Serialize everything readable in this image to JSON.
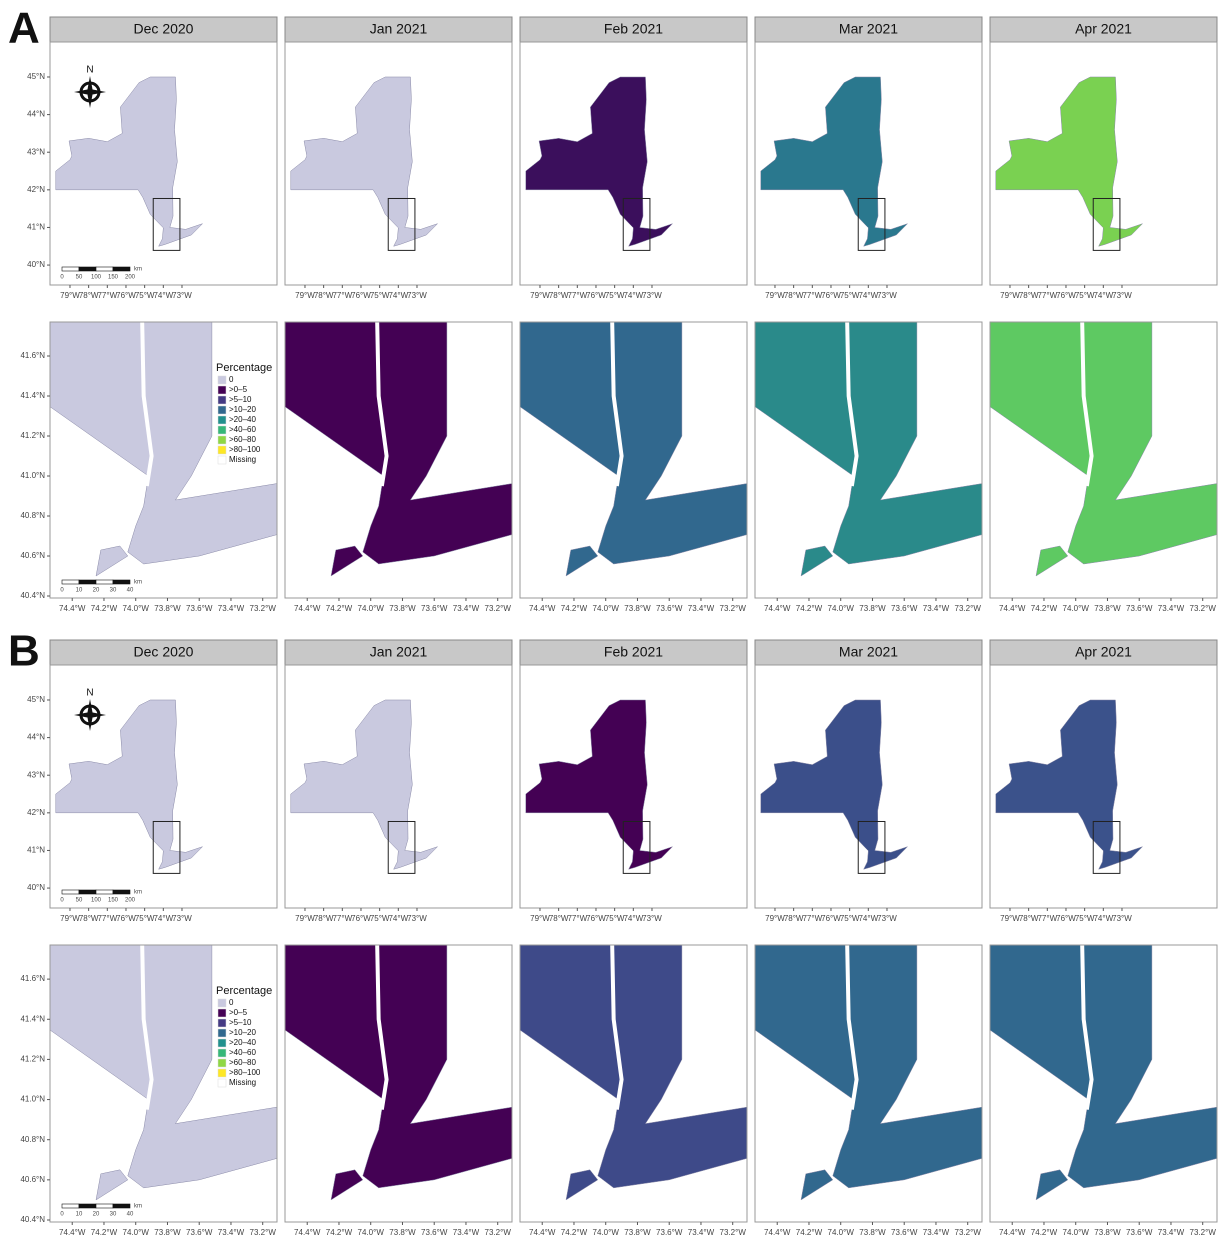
{
  "panels": [
    {
      "label": "A",
      "months": [
        "Dec 2020",
        "Jan 2021",
        "Feb 2021",
        "Mar 2021",
        "Apr 2021"
      ],
      "state_colors": [
        "#c9c9df",
        "#c9c9df",
        "#3b0f5c",
        "#2a788e",
        "#7ad151"
      ],
      "zoom_colors": [
        "#c9c9df",
        "#440154",
        "#31688e",
        "#2a8a8a",
        "#5ec962"
      ]
    },
    {
      "label": "B",
      "months": [
        "Dec 2020",
        "Jan 2021",
        "Feb 2021",
        "Mar 2021",
        "Apr 2021"
      ],
      "state_colors": [
        "#c9c9df",
        "#c9c9df",
        "#440154",
        "#3b4f8a",
        "#3b528b"
      ],
      "zoom_colors": [
        "#c9c9df",
        "#440154",
        "#3e4a89",
        "#31688e",
        "#31688e"
      ]
    }
  ],
  "state_map": {
    "lon_lim": [
      -80.07,
      -67.91
    ],
    "lat_lim": [
      39.47,
      45.93
    ],
    "lon_ticks": [
      {
        "value": -79,
        "label": "79°W"
      },
      {
        "value": -78,
        "label": "78°W"
      },
      {
        "value": -77,
        "label": "77°W"
      },
      {
        "value": -76,
        "label": "76°W"
      },
      {
        "value": -75,
        "label": "75°W"
      },
      {
        "value": -74,
        "label": "74°W"
      },
      {
        "value": -73,
        "label": "73°W"
      }
    ],
    "lat_ticks": [
      {
        "value": 40,
        "label": "40°N"
      },
      {
        "value": 41,
        "label": "41°N"
      },
      {
        "value": 42,
        "label": "42°N"
      },
      {
        "value": 43,
        "label": "43°N"
      },
      {
        "value": 44,
        "label": "44°N"
      },
      {
        "value": 45,
        "label": "45°N"
      }
    ],
    "scale_labels": [
      "0",
      "50",
      "100",
      "150",
      "200"
    ],
    "scale_unit": "km",
    "north": "N"
  },
  "zoom_map": {
    "lon_lim": [
      -74.54,
      -73.11
    ],
    "lat_lim": [
      40.39,
      41.77
    ],
    "lon_ticks": [
      {
        "value": -74.4,
        "label": "74.4°W"
      },
      {
        "value": -74.2,
        "label": "74.2°W"
      },
      {
        "value": -74.0,
        "label": "74.0°W"
      },
      {
        "value": -73.8,
        "label": "73.8°W"
      },
      {
        "value": -73.6,
        "label": "73.6°W"
      },
      {
        "value": -73.4,
        "label": "73.4°W"
      },
      {
        "value": -73.2,
        "label": "73.2°W"
      }
    ],
    "lat_ticks": [
      {
        "value": 40.4,
        "label": "40.4°N"
      },
      {
        "value": 40.6,
        "label": "40.6°N"
      },
      {
        "value": 40.8,
        "label": "40.8°N"
      },
      {
        "value": 41.0,
        "label": "41.0°N"
      },
      {
        "value": 41.2,
        "label": "41.2°N"
      },
      {
        "value": 41.4,
        "label": "41.4°N"
      },
      {
        "value": 41.6,
        "label": "41.6°N"
      }
    ],
    "scale_labels": [
      "0",
      "10",
      "20",
      "30",
      "40"
    ],
    "scale_unit": "km"
  },
  "legend": {
    "title": "Percentage",
    "items": [
      {
        "label": "0",
        "color": "#c9c9df"
      },
      {
        "label": ">0–5",
        "color": "#440154"
      },
      {
        "label": ">5–10",
        "color": "#443a83"
      },
      {
        "label": ">10–20",
        "color": "#31688e"
      },
      {
        "label": ">20–40",
        "color": "#21908d"
      },
      {
        "label": ">40–60",
        "color": "#35b779"
      },
      {
        "label": ">60–80",
        "color": "#8fd744"
      },
      {
        "label": ">80–100",
        "color": "#fde725"
      },
      {
        "label": "Missing",
        "color": "#ffffff"
      }
    ]
  }
}
